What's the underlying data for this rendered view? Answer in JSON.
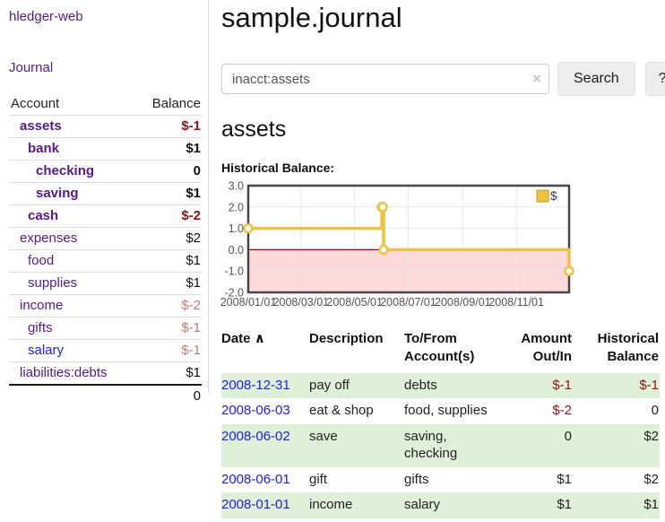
{
  "app": {
    "title": "hledger-web",
    "nav_journal": "Journal"
  },
  "sidebar": {
    "col_account": "Account",
    "col_balance": "Balance",
    "accounts": [
      {
        "name": "assets",
        "indent": 1,
        "bold": true,
        "balance": "$-1",
        "balance_class": "neg-strong"
      },
      {
        "name": "bank",
        "indent": 2,
        "bold": true,
        "balance": "$1",
        "balance_class": ""
      },
      {
        "name": "checking",
        "indent": 3,
        "bold": true,
        "balance": "0",
        "balance_class": ""
      },
      {
        "name": "saving",
        "indent": 3,
        "bold": true,
        "balance": "$1",
        "balance_class": ""
      },
      {
        "name": "cash",
        "indent": 2,
        "bold": true,
        "balance": "$-2",
        "balance_class": "neg-strong"
      },
      {
        "name": "expenses",
        "indent": 1,
        "bold": false,
        "balance": "$2",
        "balance_class": ""
      },
      {
        "name": "food",
        "indent": 2,
        "bold": false,
        "balance": "$1",
        "balance_class": ""
      },
      {
        "name": "supplies",
        "indent": 2,
        "bold": false,
        "balance": "$1",
        "balance_class": ""
      },
      {
        "name": "income",
        "indent": 1,
        "bold": false,
        "balance": "$-2",
        "balance_class": "neg-light"
      },
      {
        "name": "gifts",
        "indent": 2,
        "bold": false,
        "balance": "$-1",
        "balance_class": "neg-light"
      },
      {
        "name": "salary",
        "indent": 2,
        "bold": false,
        "balance": "$-1",
        "balance_class": "neg-light",
        "link_blue": true
      },
      {
        "name": "liabilities:debts",
        "indent": 1,
        "bold": false,
        "balance": "$1",
        "balance_class": ""
      }
    ],
    "total": "0"
  },
  "header": {
    "title": "sample.journal"
  },
  "search": {
    "value": "inacct:assets",
    "clear_icon": "×",
    "button_label": "Search",
    "help_label": "?"
  },
  "account_page": {
    "title": "assets",
    "chart_label": "Historical Balance:"
  },
  "chart_data": {
    "type": "line",
    "step": true,
    "title": "Historical Balance",
    "series": [
      {
        "name": "$",
        "color": "#edc240",
        "points": [
          [
            "2008-01-01",
            1
          ],
          [
            "2008-06-01",
            2
          ],
          [
            "2008-06-02",
            2
          ],
          [
            "2008-06-03",
            0
          ],
          [
            "2008-12-31",
            -1
          ]
        ]
      }
    ],
    "x_ticks": [
      "2008/01/01",
      "2008/03/01",
      "2008/05/01",
      "2008/07/01",
      "2008/09/01",
      "2008/11/01"
    ],
    "y_ticks": [
      "3.0",
      "2.0",
      "1.0",
      "0.0",
      "-1.0",
      "-2.0"
    ],
    "ylim": [
      -2,
      3
    ],
    "legend": "$",
    "legend_position": "top-right",
    "grid": true,
    "colors": {
      "line": "#edc240",
      "swatch_border": "#c29d23",
      "negative_fill": "#fcdada",
      "zero_line": "#a40000",
      "grid": "#e8e8e8",
      "border": "#474747"
    }
  },
  "register": {
    "columns": {
      "date": "Date",
      "sort_icon": "∧",
      "description": "Description",
      "tofrom": "To/From Account(s)",
      "amount": "Amount Out/In",
      "balance": "Historical Balance"
    },
    "rows": [
      {
        "date": "2008-12-31",
        "description": "pay off",
        "accounts": "debts",
        "amount": "$-1",
        "amount_neg": true,
        "balance": "$-1",
        "balance_neg": true,
        "shaded": true
      },
      {
        "date": "2008-06-03",
        "description": "eat & shop",
        "accounts": "food, supplies",
        "amount": "$-2",
        "amount_neg": true,
        "balance": "0",
        "balance_neg": false,
        "shaded": false
      },
      {
        "date": "2008-06-02",
        "description": "save",
        "accounts": "saving, checking",
        "amount": "0",
        "amount_neg": false,
        "balance": "$2",
        "balance_neg": false,
        "shaded": true
      },
      {
        "date": "2008-06-01",
        "description": "gift",
        "accounts": "gifts",
        "amount": "$1",
        "amount_neg": false,
        "balance": "$2",
        "balance_neg": false,
        "shaded": false
      },
      {
        "date": "2008-01-01",
        "description": "income",
        "accounts": "salary",
        "amount": "$1",
        "amount_neg": false,
        "balance": "$1",
        "balance_neg": false,
        "shaded": true
      }
    ]
  }
}
